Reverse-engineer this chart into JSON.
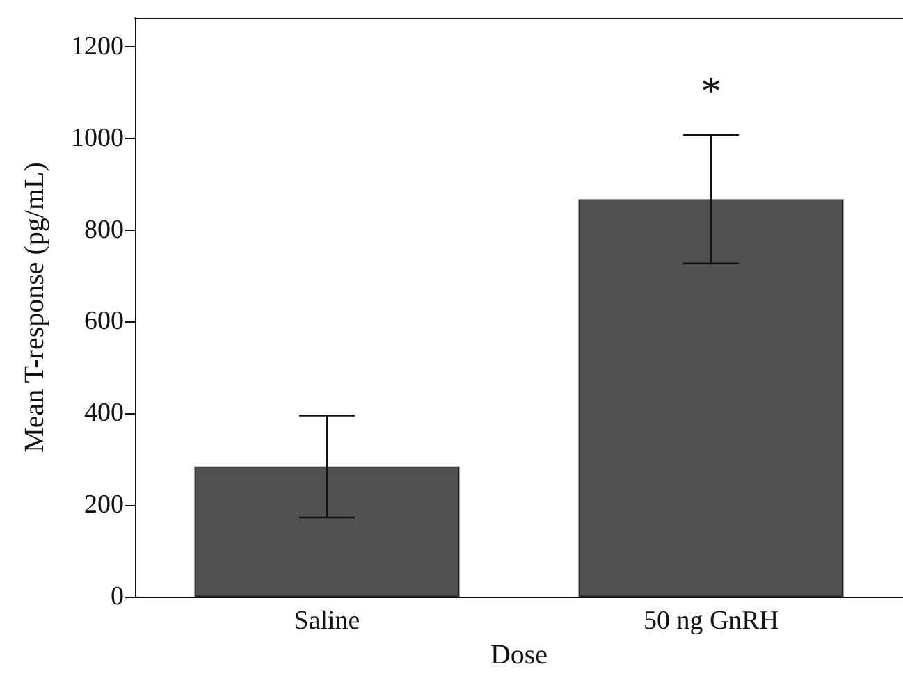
{
  "chart_data": {
    "type": "bar",
    "xlabel": "Dose",
    "ylabel": "Mean T-response (pg/mL)",
    "categories": [
      "Saline",
      "50 ng GnRH"
    ],
    "values": [
      284,
      867
    ],
    "errors": [
      111,
      140
    ],
    "color": "#505050",
    "ylim": [
      0,
      1262
    ],
    "yticks": [
      0,
      200,
      400,
      600,
      800,
      1000,
      1200
    ],
    "annotations": [
      "*"
    ],
    "grid": false
  }
}
